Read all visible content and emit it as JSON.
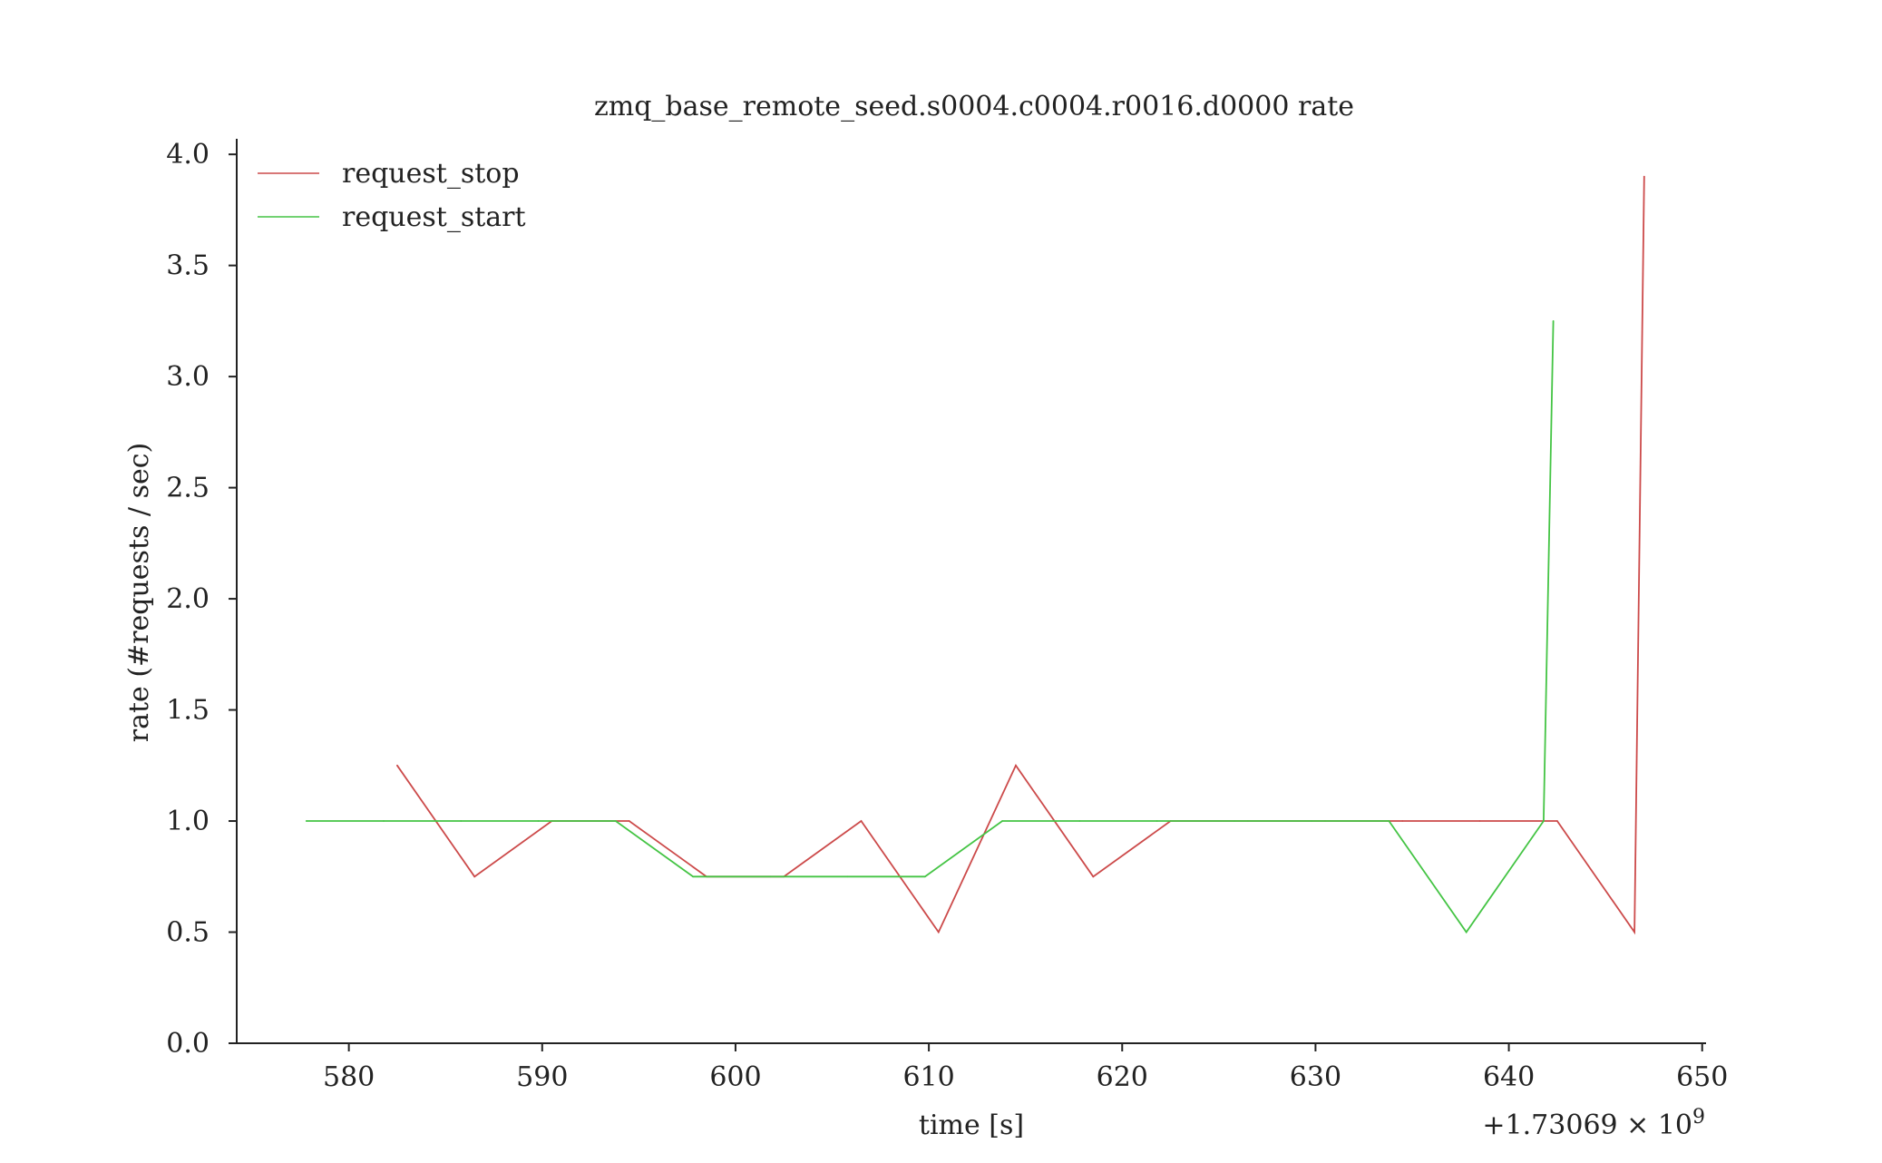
{
  "chart_data": {
    "type": "line",
    "title": "zmq_base_remote_seed.s0004.c0004.r0016.d0000 rate",
    "xlabel": "time [s]",
    "ylabel": "rate (#requests / sec)",
    "x_offset_label": "+1.73069 × 10",
    "x_offset_exponent": "9",
    "xlim": [
      574.2,
      650.2
    ],
    "ylim": [
      0.0,
      4.07
    ],
    "xticks": [
      580,
      590,
      600,
      610,
      620,
      630,
      640,
      650
    ],
    "xtick_labels": [
      "580",
      "590",
      "600",
      "610",
      "620",
      "630",
      "640",
      "650"
    ],
    "yticks": [
      0.0,
      0.5,
      1.0,
      1.5,
      2.0,
      2.5,
      3.0,
      3.5,
      4.0
    ],
    "ytick_labels": [
      "0.0",
      "0.5",
      "1.0",
      "1.5",
      "2.0",
      "2.5",
      "3.0",
      "3.5",
      "4.0"
    ],
    "grid": false,
    "legend_position": "top-left",
    "series": [
      {
        "name": "request_stop",
        "color": "#cc4a4a",
        "x": [
          582.5,
          586.5,
          590.5,
          594.5,
          598.5,
          602.5,
          606.5,
          610.5,
          614.5,
          618.5,
          622.5,
          626.5,
          630.5,
          634.5,
          638.5,
          642.5,
          646.5,
          647
        ],
        "y": [
          1.25,
          0.75,
          1.0,
          1.0,
          0.75,
          0.75,
          1.0,
          0.5,
          1.25,
          0.75,
          1.0,
          1.0,
          1.0,
          1.0,
          1.0,
          1.0,
          0.5,
          3.9
        ]
      },
      {
        "name": "request_start",
        "color": "#44c444",
        "x": [
          577.8,
          581.8,
          585.8,
          589.8,
          593.8,
          597.8,
          601.8,
          605.8,
          609.8,
          613.8,
          617.8,
          621.8,
          625.8,
          629.8,
          633.8,
          637.8,
          641.8,
          642.3
        ],
        "y": [
          1.0,
          1.0,
          1.0,
          1.0,
          1.0,
          0.75,
          0.75,
          0.75,
          0.75,
          1.0,
          1.0,
          1.0,
          1.0,
          1.0,
          1.0,
          0.5,
          1.0,
          3.25
        ]
      }
    ]
  }
}
